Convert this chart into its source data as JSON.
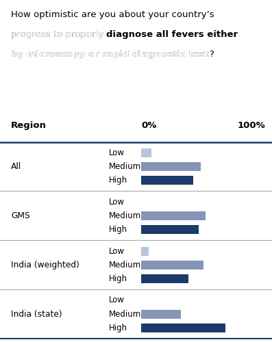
{
  "regions": [
    "All",
    "GMS",
    "India (weighted)",
    "India (state)"
  ],
  "levels": [
    "Low",
    "Medium",
    "High"
  ],
  "values": {
    "All": [
      8,
      48,
      42
    ],
    "GMS": [
      0,
      52,
      46
    ],
    "India (weighted)": [
      6,
      50,
      38
    ],
    "India (state)": [
      0,
      32,
      68
    ]
  },
  "color_low": "#b8c4d8",
  "color_medium": "#8595b8",
  "color_high": "#1a3a6b",
  "header_region": "Region",
  "header_0pct": "0%",
  "header_100pct": "100%",
  "bg_color": "#ffffff",
  "fig_width": 3.97,
  "fig_height": 5.0,
  "header_line_color": "#1a3a6b",
  "sep_line_color": "#aaaaaa",
  "title_line1_plain": "How optimistic are you about your country’s",
  "title_line2_plain": "progress to properly ",
  "title_line2_bold": "diagnose all fevers either",
  "title_line3_bold": "by microscopy or rapid diagnostic test",
  "title_line3_end": "?"
}
